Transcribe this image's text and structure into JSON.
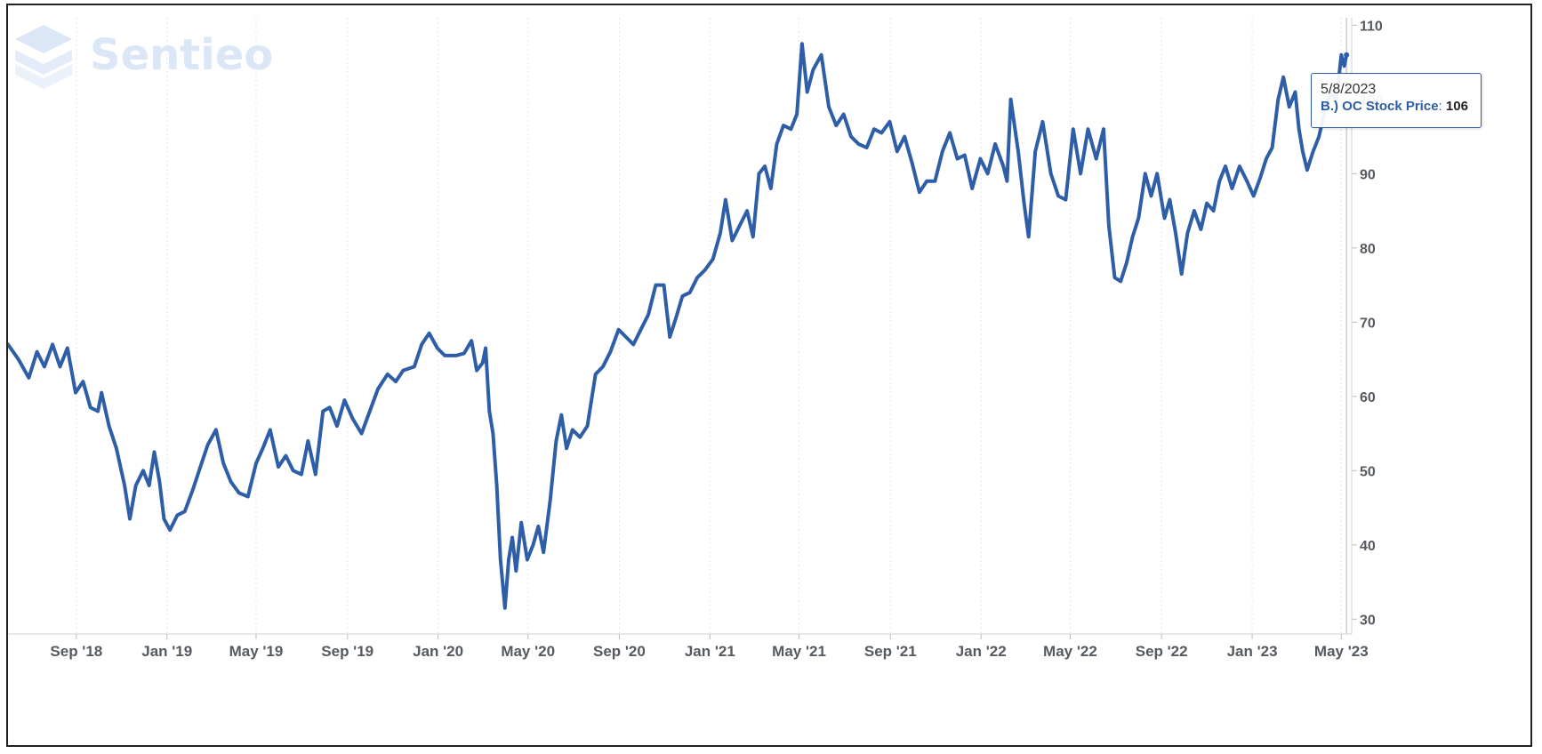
{
  "branding": {
    "logo_text": "Sentieo",
    "logo_icon": "sentieo-layers-icon"
  },
  "tooltip": {
    "date": "5/8/2023",
    "series_label": "B.) OC Stock Price",
    "value": "106"
  },
  "colors": {
    "line": "#2e5ea8",
    "grid": "#e5e5e5",
    "axis_text": "#555a60",
    "logo": "#dbe6f6"
  },
  "chart_data": {
    "type": "line",
    "xlim": [
      "2018-06-01",
      "2023-05-15"
    ],
    "ylim": [
      28,
      111
    ],
    "x_ticks": [
      {
        "date": "2018-09-01",
        "label": "Sep '18"
      },
      {
        "date": "2019-01-01",
        "label": "Jan '19"
      },
      {
        "date": "2019-05-01",
        "label": "May '19"
      },
      {
        "date": "2019-09-01",
        "label": "Sep '19"
      },
      {
        "date": "2020-01-01",
        "label": "Jan '20"
      },
      {
        "date": "2020-05-01",
        "label": "May '20"
      },
      {
        "date": "2020-09-01",
        "label": "Sep '20"
      },
      {
        "date": "2021-01-01",
        "label": "Jan '21"
      },
      {
        "date": "2021-05-01",
        "label": "May '21"
      },
      {
        "date": "2021-09-01",
        "label": "Sep '21"
      },
      {
        "date": "2022-01-01",
        "label": "Jan '22"
      },
      {
        "date": "2022-05-01",
        "label": "May '22"
      },
      {
        "date": "2022-09-01",
        "label": "Sep '22"
      },
      {
        "date": "2023-01-01",
        "label": "Jan '23"
      },
      {
        "date": "2023-05-01",
        "label": "May '23"
      }
    ],
    "y_ticks": [
      30,
      40,
      50,
      60,
      70,
      80,
      90,
      100,
      110
    ],
    "grid": true,
    "legend": "none",
    "series": [
      {
        "name": "B.) OC Stock Price",
        "points": [
          [
            "2018-06-01",
            67
          ],
          [
            "2018-06-15",
            65
          ],
          [
            "2018-06-29",
            62.5
          ],
          [
            "2018-07-10",
            66
          ],
          [
            "2018-07-20",
            64
          ],
          [
            "2018-07-31",
            67
          ],
          [
            "2018-08-10",
            64
          ],
          [
            "2018-08-20",
            66.5
          ],
          [
            "2018-08-31",
            60.5
          ],
          [
            "2018-09-10",
            62
          ],
          [
            "2018-09-20",
            58.5
          ],
          [
            "2018-09-30",
            58
          ],
          [
            "2018-10-05",
            60.5
          ],
          [
            "2018-10-15",
            56
          ],
          [
            "2018-10-25",
            53
          ],
          [
            "2018-11-05",
            48
          ],
          [
            "2018-11-12",
            43.5
          ],
          [
            "2018-11-20",
            48
          ],
          [
            "2018-11-30",
            50
          ],
          [
            "2018-12-08",
            48
          ],
          [
            "2018-12-15",
            52.5
          ],
          [
            "2018-12-22",
            48.5
          ],
          [
            "2018-12-28",
            43.5
          ],
          [
            "2019-01-05",
            42
          ],
          [
            "2019-01-15",
            44
          ],
          [
            "2019-01-25",
            44.5
          ],
          [
            "2019-02-05",
            47.5
          ],
          [
            "2019-02-15",
            50.5
          ],
          [
            "2019-02-25",
            53.5
          ],
          [
            "2019-03-08",
            55.5
          ],
          [
            "2019-03-18",
            51
          ],
          [
            "2019-03-28",
            48.5
          ],
          [
            "2019-04-08",
            47
          ],
          [
            "2019-04-20",
            46.5
          ],
          [
            "2019-05-01",
            51
          ],
          [
            "2019-05-10",
            53
          ],
          [
            "2019-05-20",
            55.5
          ],
          [
            "2019-05-31",
            50.5
          ],
          [
            "2019-06-10",
            52
          ],
          [
            "2019-06-20",
            50
          ],
          [
            "2019-07-01",
            49.5
          ],
          [
            "2019-07-10",
            54
          ],
          [
            "2019-07-20",
            49.5
          ],
          [
            "2019-07-30",
            58
          ],
          [
            "2019-08-08",
            58.5
          ],
          [
            "2019-08-18",
            56
          ],
          [
            "2019-08-28",
            59.5
          ],
          [
            "2019-09-08",
            57
          ],
          [
            "2019-09-20",
            55
          ],
          [
            "2019-10-01",
            58
          ],
          [
            "2019-10-12",
            61
          ],
          [
            "2019-10-25",
            63
          ],
          [
            "2019-11-05",
            62
          ],
          [
            "2019-11-15",
            63.5
          ],
          [
            "2019-11-30",
            64
          ],
          [
            "2019-12-10",
            67
          ],
          [
            "2019-12-20",
            68.5
          ],
          [
            "2019-12-31",
            66.5
          ],
          [
            "2020-01-10",
            65.5
          ],
          [
            "2020-01-25",
            65.5
          ],
          [
            "2020-02-05",
            65.8
          ],
          [
            "2020-02-15",
            67.5
          ],
          [
            "2020-02-22",
            63.5
          ],
          [
            "2020-03-01",
            64.5
          ],
          [
            "2020-03-05",
            66.5
          ],
          [
            "2020-03-10",
            58
          ],
          [
            "2020-03-15",
            55
          ],
          [
            "2020-03-20",
            48
          ],
          [
            "2020-03-25",
            38
          ],
          [
            "2020-03-31",
            31.5
          ],
          [
            "2020-04-05",
            38
          ],
          [
            "2020-04-10",
            41
          ],
          [
            "2020-04-15",
            36.5
          ],
          [
            "2020-04-22",
            43
          ],
          [
            "2020-04-30",
            38
          ],
          [
            "2020-05-08",
            40
          ],
          [
            "2020-05-15",
            42.5
          ],
          [
            "2020-05-22",
            39
          ],
          [
            "2020-05-31",
            46
          ],
          [
            "2020-06-08",
            54
          ],
          [
            "2020-06-15",
            57.5
          ],
          [
            "2020-06-22",
            53
          ],
          [
            "2020-06-30",
            55.5
          ],
          [
            "2020-07-10",
            54.5
          ],
          [
            "2020-07-20",
            56
          ],
          [
            "2020-07-31",
            63
          ],
          [
            "2020-08-10",
            64
          ],
          [
            "2020-08-20",
            66
          ],
          [
            "2020-08-31",
            69
          ],
          [
            "2020-09-10",
            68
          ],
          [
            "2020-09-20",
            67
          ],
          [
            "2020-09-30",
            69
          ],
          [
            "2020-10-10",
            71
          ],
          [
            "2020-10-20",
            75
          ],
          [
            "2020-10-31",
            75
          ],
          [
            "2020-11-08",
            68
          ],
          [
            "2020-11-16",
            70.5
          ],
          [
            "2020-11-25",
            73.5
          ],
          [
            "2020-12-05",
            74
          ],
          [
            "2020-12-15",
            76
          ],
          [
            "2020-12-25",
            77
          ],
          [
            "2021-01-05",
            78.5
          ],
          [
            "2021-01-15",
            82
          ],
          [
            "2021-01-22",
            86.5
          ],
          [
            "2021-01-31",
            81
          ],
          [
            "2021-02-10",
            83
          ],
          [
            "2021-02-20",
            85
          ],
          [
            "2021-02-28",
            81.5
          ],
          [
            "2021-03-08",
            90
          ],
          [
            "2021-03-16",
            91
          ],
          [
            "2021-03-24",
            88
          ],
          [
            "2021-04-01",
            94
          ],
          [
            "2021-04-10",
            96.5
          ],
          [
            "2021-04-20",
            96
          ],
          [
            "2021-04-28",
            98
          ],
          [
            "2021-05-05",
            107.5
          ],
          [
            "2021-05-12",
            101
          ],
          [
            "2021-05-20",
            104
          ],
          [
            "2021-05-31",
            106
          ],
          [
            "2021-06-10",
            99
          ],
          [
            "2021-06-20",
            96.5
          ],
          [
            "2021-06-30",
            98
          ],
          [
            "2021-07-10",
            95
          ],
          [
            "2021-07-20",
            94
          ],
          [
            "2021-07-31",
            93.5
          ],
          [
            "2021-08-10",
            96
          ],
          [
            "2021-08-20",
            95.5
          ],
          [
            "2021-08-31",
            97
          ],
          [
            "2021-09-10",
            93
          ],
          [
            "2021-09-20",
            95
          ],
          [
            "2021-09-30",
            91.5
          ],
          [
            "2021-10-10",
            87.5
          ],
          [
            "2021-10-20",
            89
          ],
          [
            "2021-10-31",
            89
          ],
          [
            "2021-11-10",
            93
          ],
          [
            "2021-11-20",
            95.5
          ],
          [
            "2021-11-30",
            92
          ],
          [
            "2021-12-10",
            92.5
          ],
          [
            "2021-12-20",
            88
          ],
          [
            "2021-12-31",
            92
          ],
          [
            "2022-01-10",
            90
          ],
          [
            "2022-01-20",
            94
          ],
          [
            "2022-01-31",
            91
          ],
          [
            "2022-02-05",
            89
          ],
          [
            "2022-02-10",
            100
          ],
          [
            "2022-02-20",
            93
          ],
          [
            "2022-02-28",
            86
          ],
          [
            "2022-03-06",
            81.5
          ],
          [
            "2022-03-15",
            93
          ],
          [
            "2022-03-25",
            97
          ],
          [
            "2022-04-05",
            90
          ],
          [
            "2022-04-15",
            87
          ],
          [
            "2022-04-25",
            86.5
          ],
          [
            "2022-05-05",
            96
          ],
          [
            "2022-05-15",
            90
          ],
          [
            "2022-05-25",
            96
          ],
          [
            "2022-06-05",
            92
          ],
          [
            "2022-06-15",
            96
          ],
          [
            "2022-06-22",
            83
          ],
          [
            "2022-06-30",
            76
          ],
          [
            "2022-07-08",
            75.5
          ],
          [
            "2022-07-16",
            78
          ],
          [
            "2022-07-24",
            81.5
          ],
          [
            "2022-08-01",
            84
          ],
          [
            "2022-08-10",
            90
          ],
          [
            "2022-08-18",
            87
          ],
          [
            "2022-08-26",
            90
          ],
          [
            "2022-09-05",
            84
          ],
          [
            "2022-09-12",
            86.5
          ],
          [
            "2022-09-20",
            82
          ],
          [
            "2022-09-28",
            76.5
          ],
          [
            "2022-10-06",
            82
          ],
          [
            "2022-10-15",
            85
          ],
          [
            "2022-10-24",
            82.5
          ],
          [
            "2022-11-01",
            86
          ],
          [
            "2022-11-10",
            85
          ],
          [
            "2022-11-18",
            89
          ],
          [
            "2022-11-26",
            91
          ],
          [
            "2022-12-05",
            88
          ],
          [
            "2022-12-15",
            91
          ],
          [
            "2022-12-25",
            89
          ],
          [
            "2023-01-03",
            87
          ],
          [
            "2023-01-12",
            89.5
          ],
          [
            "2023-01-20",
            92
          ],
          [
            "2023-01-28",
            93.5
          ],
          [
            "2023-02-05",
            100
          ],
          [
            "2023-02-12",
            103
          ],
          [
            "2023-02-20",
            99
          ],
          [
            "2023-02-28",
            101
          ],
          [
            "2023-03-05",
            96
          ],
          [
            "2023-03-10",
            93
          ],
          [
            "2023-03-16",
            90.5
          ],
          [
            "2023-03-24",
            93
          ],
          [
            "2023-04-01",
            95
          ],
          [
            "2023-04-10",
            99
          ],
          [
            "2023-04-18",
            101
          ],
          [
            "2023-04-24",
            99.5
          ],
          [
            "2023-05-01",
            106
          ],
          [
            "2023-05-05",
            104.5
          ],
          [
            "2023-05-08",
            106
          ]
        ]
      }
    ]
  }
}
